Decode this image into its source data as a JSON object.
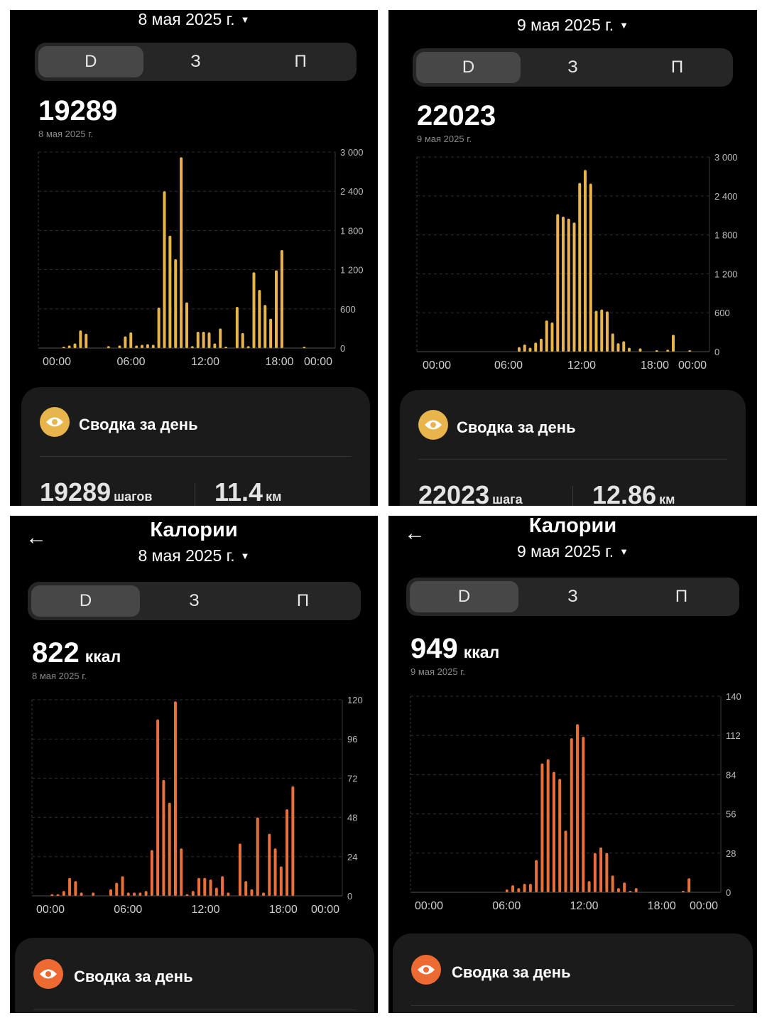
{
  "panels": [
    {
      "title": "",
      "date": "8 мая 2025 г.",
      "tabs": [
        "D",
        "З",
        "П"
      ],
      "active_tab": 0,
      "value": "19289",
      "value_unit": "",
      "value_date": "8 мая 2025 г.",
      "summary_title": "Сводка за день",
      "stats": [
        {
          "value": "19289",
          "unit": "шагов"
        },
        {
          "value": "11.4",
          "unit": "км"
        }
      ]
    },
    {
      "title": "",
      "date": "9 мая 2025 г.",
      "tabs": [
        "D",
        "З",
        "П"
      ],
      "active_tab": 0,
      "value": "22023",
      "value_unit": "",
      "value_date": "9 мая 2025 г.",
      "summary_title": "Сводка за день",
      "stats": [
        {
          "value": "22023",
          "unit": "шага"
        },
        {
          "value": "12.86",
          "unit": "км"
        }
      ]
    },
    {
      "title": "Калории",
      "date": "8 мая 2025 г.",
      "tabs": [
        "D",
        "З",
        "П"
      ],
      "active_tab": 0,
      "value": "822",
      "value_unit": "ккал",
      "value_date": "8 мая 2025 г.",
      "summary_title": "Сводка за день",
      "stats": []
    },
    {
      "title": "Калории",
      "date": "9 мая 2025 г.",
      "tabs": [
        "D",
        "З",
        "П"
      ],
      "active_tab": 0,
      "value": "949",
      "value_unit": "ккал",
      "value_date": "9 мая 2025 г.",
      "summary_title": "Сводка за день",
      "stats": []
    }
  ],
  "icons": {
    "back": "arrow-left-icon",
    "summary": "eye-icon",
    "dropdown": "caret-down-icon"
  },
  "colors": {
    "steps_bar": "#E8B44C",
    "calories_bar": "#E8713A",
    "steps_icon_bg": "#E8B44C",
    "calories_icon_bg": "#EE6A33"
  },
  "chart_data": [
    {
      "type": "bar",
      "title": "",
      "x_labels": [
        "00:00",
        "06:00",
        "12:00",
        "18:00",
        "00:00"
      ],
      "y_ticks": [
        "0",
        "600",
        "1 200",
        "1 800",
        "2 400",
        "3 000"
      ],
      "ylim": [
        0,
        3000
      ],
      "x_unit": "hour",
      "x": [
        1.0,
        1.5,
        2.0,
        2.5,
        3.0,
        5.0,
        6.0,
        6.5,
        7.0,
        7.5,
        8.0,
        8.5,
        9.0,
        9.5,
        10.0,
        10.5,
        11.0,
        11.5,
        12.0,
        12.5,
        13.0,
        13.5,
        14.0,
        14.5,
        15.0,
        15.5,
        16.5,
        17.0,
        17.5,
        18.0,
        18.5,
        19.0,
        19.5,
        20.0,
        20.5,
        22.5
      ],
      "values": [
        20,
        40,
        70,
        270,
        220,
        30,
        40,
        180,
        240,
        40,
        50,
        60,
        50,
        620,
        2400,
        1720,
        1360,
        2920,
        700,
        30,
        250,
        250,
        240,
        70,
        300,
        20,
        630,
        230,
        30,
        1160,
        890,
        660,
        450,
        1190,
        1500,
        10
      ]
    },
    {
      "type": "bar",
      "title": "",
      "x_labels": [
        "00:00",
        "06:00",
        "12:00",
        "18:00",
        "00:00"
      ],
      "y_ticks": [
        "0",
        "600",
        "1 200",
        "1 800",
        "2 400",
        "3 000"
      ],
      "ylim": [
        0,
        3000
      ],
      "x_unit": "hour",
      "x": [
        8.0,
        8.5,
        9.0,
        9.5,
        10.0,
        10.5,
        11.0,
        11.5,
        12.0,
        12.5,
        13.0,
        13.5,
        14.0,
        14.5,
        15.0,
        15.5,
        16.0,
        16.5,
        17.0,
        17.5,
        18.0,
        19.0,
        20.5,
        21.5,
        22.0,
        23.5
      ],
      "values": [
        70,
        110,
        60,
        140,
        200,
        480,
        450,
        2120,
        2080,
        2050,
        1990,
        2600,
        2800,
        2590,
        630,
        650,
        620,
        280,
        130,
        160,
        60,
        50,
        10,
        30,
        260,
        10
      ]
    },
    {
      "type": "bar",
      "title": "",
      "x_labels": [
        "00:00",
        "06:00",
        "12:00",
        "18:00",
        "00:00"
      ],
      "y_ticks": [
        "0",
        "24",
        "48",
        "72",
        "96",
        "120"
      ],
      "ylim": [
        0,
        120
      ],
      "x_unit": "hour",
      "x": [
        0.5,
        1.0,
        1.5,
        2.0,
        2.5,
        3.0,
        4.0,
        5.5,
        6.0,
        6.5,
        7.0,
        7.5,
        8.0,
        8.5,
        9.0,
        9.5,
        10.0,
        10.5,
        11.0,
        11.5,
        12.0,
        12.5,
        13.0,
        13.5,
        14.0,
        14.5,
        15.0,
        15.5,
        16.5,
        17.0,
        17.5,
        18.0,
        18.5,
        19.0,
        19.5,
        20.0,
        20.5,
        21.0
      ],
      "values": [
        1,
        1,
        3,
        11,
        9,
        2,
        2,
        4,
        8,
        12,
        2,
        2,
        2,
        3,
        28,
        108,
        71,
        57,
        119,
        29,
        1,
        3,
        11,
        11,
        10,
        5,
        12,
        2,
        32,
        9,
        4,
        48,
        2,
        38,
        29,
        18,
        53,
        67
      ]
    },
    {
      "type": "bar",
      "title": "",
      "x_labels": [
        "00:00",
        "06:00",
        "12:00",
        "18:00",
        "00:00"
      ],
      "y_ticks": [
        "0",
        "28",
        "56",
        "84",
        "112",
        "140"
      ],
      "ylim": [
        0,
        140
      ],
      "x_unit": "hour",
      "x": [
        7.0,
        7.5,
        8.0,
        8.5,
        9.0,
        9.5,
        10.0,
        10.5,
        11.0,
        11.5,
        12.0,
        12.5,
        13.0,
        13.5,
        14.0,
        14.5,
        15.0,
        15.5,
        16.0,
        16.5,
        17.0,
        17.5,
        18.0,
        22.0,
        22.5
      ],
      "values": [
        2,
        5,
        3,
        6,
        6,
        23,
        92,
        95,
        86,
        81,
        44,
        110,
        120,
        111,
        8,
        28,
        32,
        28,
        12,
        3,
        7,
        1,
        3,
        1,
        10
      ]
    }
  ]
}
